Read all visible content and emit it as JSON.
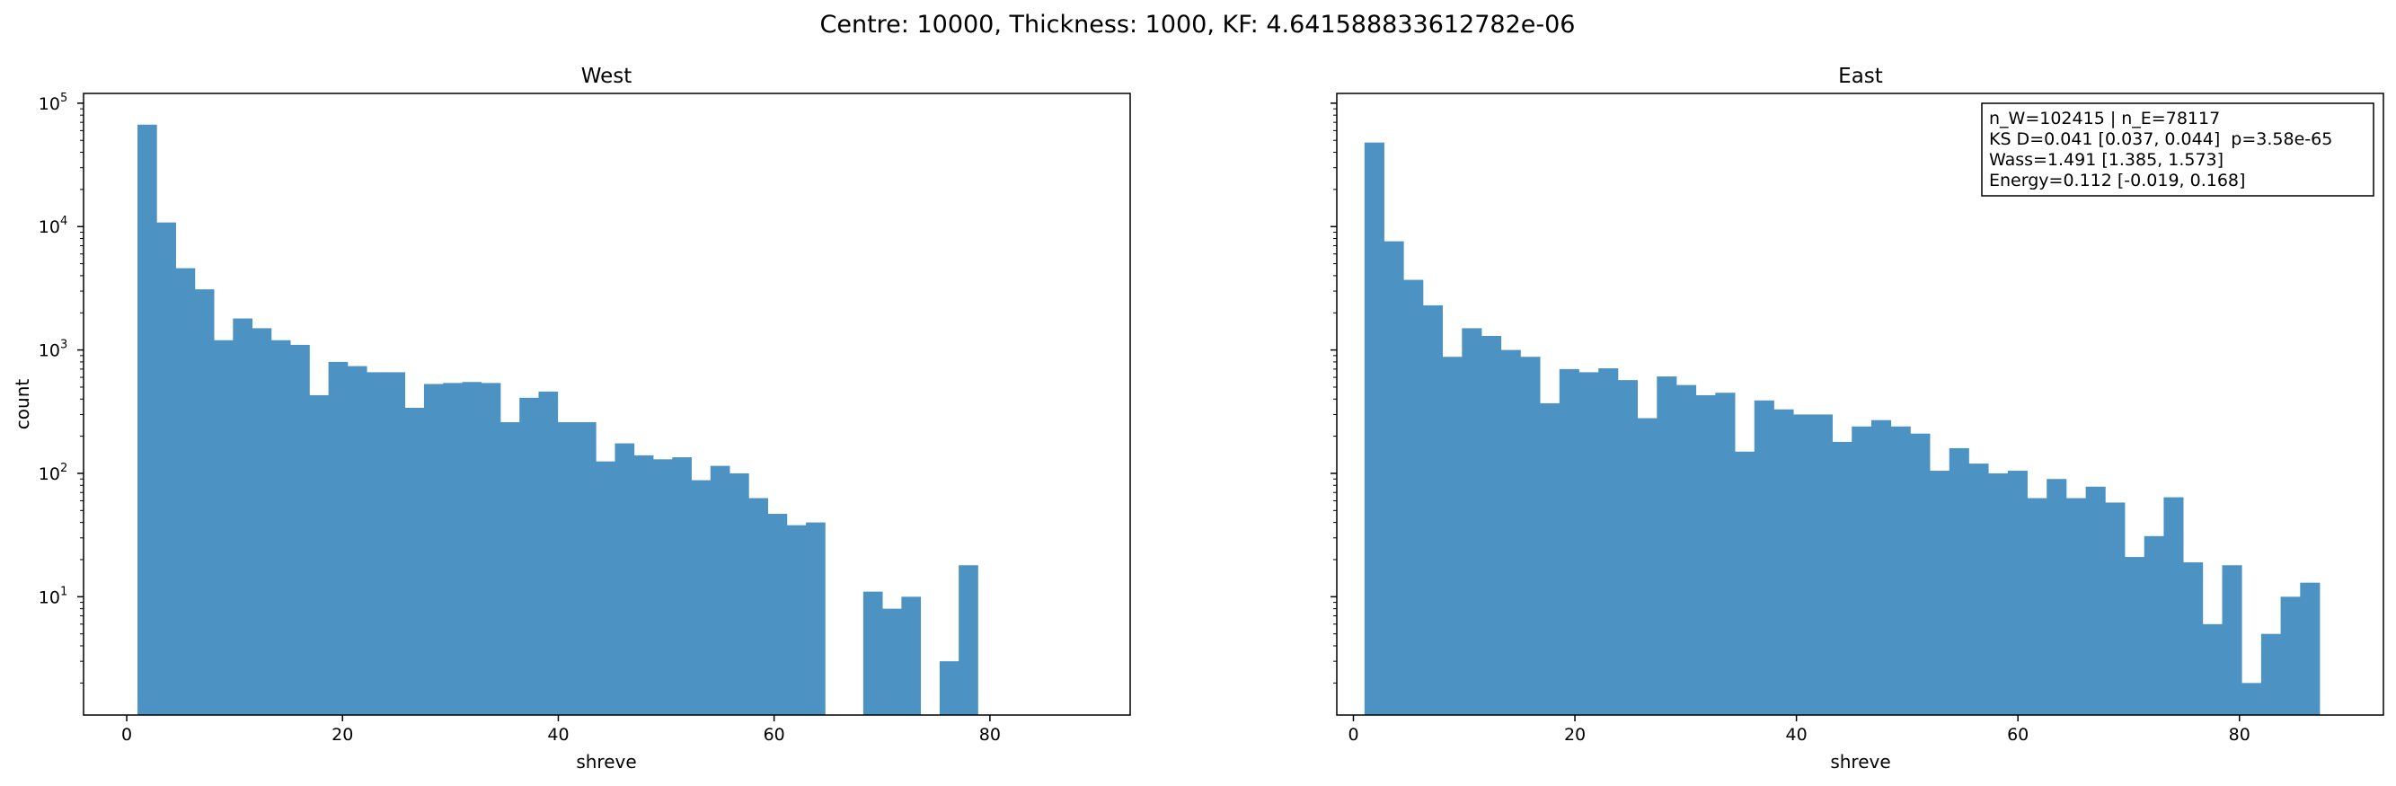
{
  "figure": {
    "suptitle": "Centre: 10000, Thickness: 1000, KF: 4.641588833612782e-06"
  },
  "chart_data": [
    {
      "type": "histogram",
      "title": "West",
      "xlabel": "shreve",
      "ylabel": "count",
      "yscale": "log",
      "xlim": [
        -4,
        93
      ],
      "ylim": [
        1.1,
        120000
      ],
      "xticks": [
        0,
        20,
        40,
        60,
        80
      ],
      "yticks": [
        10,
        100,
        1000,
        10000,
        100000
      ],
      "ytick_labels": [
        [
          "10",
          "1"
        ],
        [
          "10",
          "2"
        ],
        [
          "10",
          "3"
        ],
        [
          "10",
          "4"
        ],
        [
          "10",
          "5"
        ]
      ],
      "bin_start": 1,
      "bin_width": 1.77,
      "counts": [
        67000,
        10800,
        4600,
        3100,
        1200,
        1800,
        1500,
        1200,
        1100,
        430,
        800,
        740,
        660,
        660,
        340,
        530,
        540,
        550,
        540,
        260,
        410,
        460,
        260,
        260,
        125,
        175,
        140,
        130,
        135,
        88,
        115,
        100,
        63,
        47,
        38,
        40,
        0,
        0,
        11,
        8,
        10,
        0,
        3,
        18,
        0,
        0,
        0,
        0,
        0,
        0
      ],
      "color": "#4c92c3"
    },
    {
      "type": "histogram",
      "title": "East",
      "xlabel": "shreve",
      "ylabel": "",
      "yscale": "log",
      "xlim": [
        -1.5,
        93
      ],
      "ylim": [
        1.1,
        120000
      ],
      "xticks": [
        0,
        20,
        40,
        60,
        80
      ],
      "yticks": [
        10,
        100,
        1000,
        10000,
        100000
      ],
      "ytick_labels": [],
      "bin_start": 1,
      "bin_width": 1.76,
      "counts": [
        48000,
        7600,
        3700,
        2300,
        880,
        1500,
        1300,
        1000,
        880,
        370,
        700,
        660,
        710,
        570,
        280,
        610,
        520,
        430,
        450,
        150,
        390,
        330,
        300,
        300,
        180,
        240,
        270,
        240,
        210,
        105,
        160,
        120,
        100,
        105,
        63,
        90,
        63,
        78,
        58,
        21,
        31,
        64,
        19,
        6,
        18,
        2,
        5,
        10,
        13,
        0
      ],
      "color": "#4c92c3",
      "legend": {
        "location": "upper-right",
        "lines": [
          "n_W=102415 | n_E=78117",
          "KS D=0.041 [0.037, 0.044]  p=3.58e-65",
          "Wass=1.491 [1.385, 1.573]",
          "Energy=0.112 [-0.019, 0.168]"
        ]
      }
    }
  ]
}
